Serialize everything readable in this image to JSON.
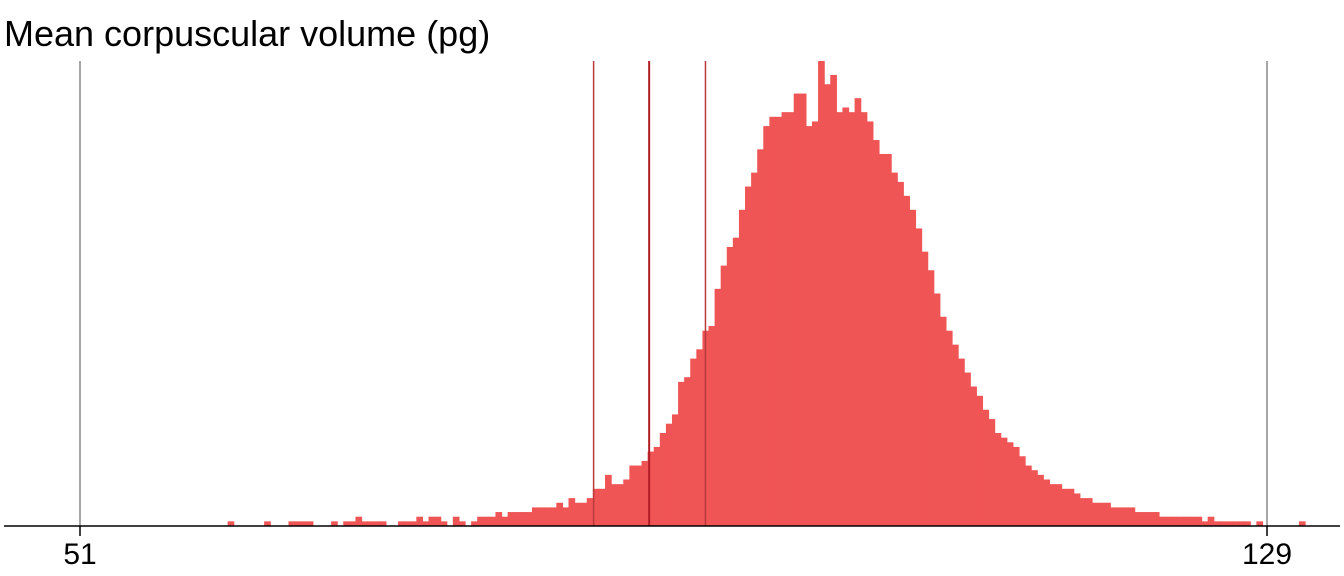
{
  "chart_data": {
    "type": "histogram",
    "title": "Mean corpuscular volume (pg)",
    "xlabel": "",
    "ylabel": "",
    "xlim": [
      51,
      129
    ],
    "ylim": [
      0,
      1
    ],
    "grid": false,
    "tick_labels": [
      "51",
      "129"
    ],
    "bin_start": 59.5,
    "bin_width": 0.4,
    "counts": [
      0.0,
      0.0,
      0.0,
      0.01,
      0.0,
      0.0,
      0.0,
      0.0,
      0.0,
      0.01,
      0.0,
      0.0,
      0.0,
      0.01,
      0.01,
      0.01,
      0.01,
      0.0,
      0.0,
      0.0,
      0.01,
      0.0,
      0.01,
      0.01,
      0.02,
      0.01,
      0.01,
      0.01,
      0.01,
      0.0,
      0.0,
      0.01,
      0.01,
      0.01,
      0.02,
      0.01,
      0.02,
      0.02,
      0.01,
      0.0,
      0.02,
      0.01,
      0.0,
      0.01,
      0.02,
      0.02,
      0.02,
      0.03,
      0.02,
      0.03,
      0.03,
      0.03,
      0.03,
      0.04,
      0.04,
      0.04,
      0.04,
      0.05,
      0.04,
      0.06,
      0.05,
      0.05,
      0.06,
      0.08,
      0.08,
      0.11,
      0.09,
      0.09,
      0.1,
      0.13,
      0.13,
      0.14,
      0.16,
      0.17,
      0.2,
      0.22,
      0.24,
      0.31,
      0.32,
      0.36,
      0.38,
      0.42,
      0.43,
      0.51,
      0.56,
      0.6,
      0.62,
      0.68,
      0.73,
      0.76,
      0.81,
      0.86,
      0.88,
      0.88,
      0.89,
      0.89,
      0.93,
      0.93,
      0.86,
      0.87,
      1.0,
      0.95,
      0.97,
      0.89,
      0.9,
      0.89,
      0.92,
      0.89,
      0.87,
      0.83,
      0.8,
      0.8,
      0.76,
      0.74,
      0.71,
      0.68,
      0.64,
      0.59,
      0.55,
      0.5,
      0.45,
      0.42,
      0.39,
      0.36,
      0.33,
      0.3,
      0.28,
      0.25,
      0.23,
      0.2,
      0.19,
      0.18,
      0.17,
      0.15,
      0.13,
      0.12,
      0.11,
      0.1,
      0.09,
      0.09,
      0.08,
      0.08,
      0.07,
      0.06,
      0.06,
      0.05,
      0.05,
      0.05,
      0.04,
      0.04,
      0.04,
      0.04,
      0.03,
      0.03,
      0.03,
      0.03,
      0.02,
      0.02,
      0.02,
      0.02,
      0.02,
      0.02,
      0.02,
      0.01,
      0.02,
      0.01,
      0.01,
      0.01,
      0.01,
      0.01,
      0.01,
      0.0,
      0.01,
      0.0,
      0.0,
      0.0,
      0.0,
      0.0,
      0.0,
      0.01,
      0.0,
      0.0,
      0.0,
      0.0,
      0.0,
      0.0,
      0.0,
      0.0,
      0.0,
      0.0,
      0.0
    ],
    "vertical_lines": [
      {
        "name": "min-line",
        "x": 51,
        "color": "#888888",
        "style": "gray"
      },
      {
        "name": "q1-line",
        "x": 84.75,
        "color": "#b83a3a",
        "style": "quantile"
      },
      {
        "name": "median-line",
        "x": 88.4,
        "color": "#b01e24",
        "style": "median"
      },
      {
        "name": "q3-line",
        "x": 92.1,
        "color": "#b83a3a",
        "style": "quantile"
      },
      {
        "name": "max-line",
        "x": 129,
        "color": "#888888",
        "style": "gray"
      }
    ],
    "bar_color": "#f05556"
  }
}
